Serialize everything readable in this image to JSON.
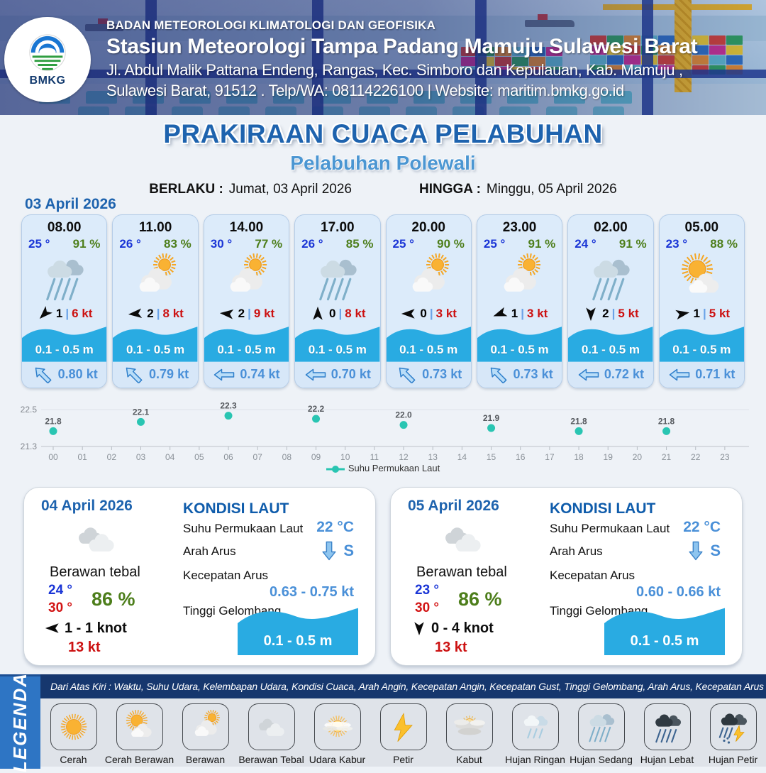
{
  "header": {
    "org": "BADAN METEOROLOGI KLIMATOLOGI DAN GEOFISIKA",
    "station": "Stasiun Meteorologi Tampa Padang Mamuju Sulawesi Barat",
    "address1": "Jl. Abdul Malik Pattana Endeng, Rangas, Kec. Simboro dan Kepulauan, Kab. Mamuju ,",
    "address2": "Sulawesi Barat, 91512 . Telp/WA: 08114226100 | Website: maritim.bmkg.go.id",
    "logo_text": "BMKG"
  },
  "title": {
    "main": "PRAKIRAAN CUACA PELABUHAN",
    "subtitle": "Pelabuhan Polewali",
    "berlaku_label": "BERLAKU :",
    "berlaku_value": "Jumat, 03 April 2026",
    "hingga_label": "HINGGA :",
    "hingga_value": "Minggu, 05 April 2026"
  },
  "hourly": {
    "date_label": "03 April 2026",
    "cards": [
      {
        "time": "08.00",
        "temp": "25 °",
        "humidity": "91 %",
        "icon": "hujan-sedang",
        "wind_dir_deg": 225,
        "wind_speed": "1",
        "separator": "|",
        "gust": "6 kt",
        "wave": "0.1 - 0.5 m",
        "current": "0.80 kt",
        "current_rot": 45
      },
      {
        "time": "11.00",
        "temp": "26 °",
        "humidity": "83 %",
        "icon": "berawan",
        "wind_dir_deg": 265,
        "wind_speed": "2",
        "separator": "|",
        "gust": "8 kt",
        "wave": "0.1 - 0.5 m",
        "current": "0.79 kt",
        "current_rot": 45
      },
      {
        "time": "14.00",
        "temp": "30 °",
        "humidity": "77 %",
        "icon": "berawan",
        "wind_dir_deg": 275,
        "wind_speed": "2",
        "separator": "|",
        "gust": "9 kt",
        "wave": "0.1 - 0.5 m",
        "current": "0.74 kt",
        "current_rot": 0
      },
      {
        "time": "17.00",
        "temp": "26 °",
        "humidity": "85 %",
        "icon": "hujan-sedang",
        "wind_dir_deg": 0,
        "wind_speed": "0",
        "separator": "|",
        "gust": "8 kt",
        "wave": "0.1 - 0.5 m",
        "current": "0.70 kt",
        "current_rot": 0
      },
      {
        "time": "20.00",
        "temp": "25 °",
        "humidity": "90 %",
        "icon": "berawan",
        "wind_dir_deg": 270,
        "wind_speed": "0",
        "separator": "|",
        "gust": "3 kt",
        "wave": "0.1 - 0.5 m",
        "current": "0.73 kt",
        "current_rot": 45
      },
      {
        "time": "23.00",
        "temp": "25 °",
        "humidity": "91 %",
        "icon": "berawan",
        "wind_dir_deg": 250,
        "wind_speed": "1",
        "separator": "|",
        "gust": "3 kt",
        "wave": "0.1 - 0.5 m",
        "current": "0.73 kt",
        "current_rot": 45
      },
      {
        "time": "02.00",
        "temp": "24 °",
        "humidity": "91 %",
        "icon": "hujan-sedang",
        "wind_dir_deg": 180,
        "wind_speed": "2",
        "separator": "|",
        "gust": "5 kt",
        "wave": "0.1 - 0.5 m",
        "current": "0.72 kt",
        "current_rot": 0
      },
      {
        "time": "05.00",
        "temp": "23 °",
        "humidity": "88 %",
        "icon": "cerah-berawan",
        "wind_dir_deg": 80,
        "wind_speed": "1",
        "separator": "|",
        "gust": "5 kt",
        "wave": "0.1 - 0.5 m",
        "current": "0.71 kt",
        "current_rot": 0
      }
    ]
  },
  "chart_data": {
    "type": "scatter",
    "series_name": "Suhu Permukaan Laut",
    "x": [
      0,
      3,
      6,
      9,
      12,
      15,
      18,
      21
    ],
    "values": [
      21.8,
      22.1,
      22.3,
      22.2,
      22.0,
      21.9,
      21.8,
      21.8
    ],
    "labels": [
      "21.8",
      "22.1",
      "22.3",
      "22.2",
      "22.0",
      "21.9",
      "21.8",
      "21.8"
    ],
    "x_ticks": [
      "00",
      "01",
      "02",
      "03",
      "04",
      "05",
      "06",
      "07",
      "08",
      "09",
      "10",
      "11",
      "12",
      "13",
      "14",
      "15",
      "16",
      "17",
      "18",
      "19",
      "20",
      "21",
      "22",
      "23"
    ],
    "ylim": [
      21.3,
      22.5
    ],
    "y_tick_labels": [
      "22.5",
      "21.3"
    ],
    "marker_color": "#29c5b2",
    "grid": "top gridline + baseline only",
    "legend_position": "bottom-center"
  },
  "daily": [
    {
      "date": "04 April 2026",
      "icon": "berawan-tebal",
      "condition": "Berawan tebal",
      "temp_min": "24 °",
      "temp_max": "30 °",
      "humidity": "86 %",
      "wind_dir_deg": 270,
      "wind_range": "1  - 1 knot",
      "gust": "13 kt",
      "sea": {
        "heading": "KONDISI LAUT",
        "sst_label": "Suhu Permukaan Laut",
        "sst_value": "22 °C",
        "dir_label": "Arah Arus",
        "dir_value": "S",
        "speed_label": "Kecepatan Arus",
        "speed_value": "0.63  - 0.75 kt",
        "wave_label": "Tinggi Gelombang",
        "wave_value": "0.1 - 0.5 m"
      }
    },
    {
      "date": "05 April 2026",
      "icon": "berawan-tebal",
      "condition": "Berawan tebal",
      "temp_min": "23 °",
      "temp_max": "30 °",
      "humidity": "86 %",
      "wind_dir_deg": 180,
      "wind_range": "0  - 4 knot",
      "gust": "13 kt",
      "sea": {
        "heading": "KONDISI LAUT",
        "sst_label": "Suhu Permukaan Laut",
        "sst_value": "22 °C",
        "dir_label": "Arah Arus",
        "dir_value": "S",
        "speed_label": "Kecepatan Arus",
        "speed_value": "0.60  - 0.66 kt",
        "wave_label": "Tinggi Gelombang",
        "wave_value": "0.1 - 0.5 m"
      }
    }
  ],
  "legend": {
    "title": "LEGENDA",
    "description": "Dari Atas Kiri : Waktu, Suhu Udara, Kelembapan Udara, Kondisi Cuaca, Arah Angin, Kecepatan Angin, Kecepatan Gust, Tinggi Gelombang, Arah Arus, Kecepatan Arus",
    "items": [
      {
        "label": "Cerah",
        "icon": "cerah"
      },
      {
        "label": "Cerah Berawan",
        "icon": "cerah-berawan"
      },
      {
        "label": "Berawan",
        "icon": "berawan"
      },
      {
        "label": "Berawan Tebal",
        "icon": "berawan-tebal"
      },
      {
        "label": "Udara Kabur",
        "icon": "udara-kabur"
      },
      {
        "label": "Petir",
        "icon": "petir"
      },
      {
        "label": "Kabut",
        "icon": "kabut"
      },
      {
        "label": "Hujan Ringan",
        "icon": "hujan-ringan"
      },
      {
        "label": "Hujan Sedang",
        "icon": "hujan-sedang"
      },
      {
        "label": "Hujan Lebat",
        "icon": "hujan-lebat"
      },
      {
        "label": "Hujan Petir",
        "icon": "hujan-petir"
      }
    ]
  },
  "colors": {
    "accent_blue": "#1e63ae",
    "light_blue": "#4a90d8",
    "wave_blue": "#29abe2",
    "temp_blue": "#1a35d6",
    "humidity_green": "#4d7e1b",
    "gust_red": "#cc1111",
    "marker_teal": "#29c5b2",
    "card_bg": "#dcebfa",
    "legend_bar": "#2e75c4",
    "legend_strip": "#16376e"
  }
}
